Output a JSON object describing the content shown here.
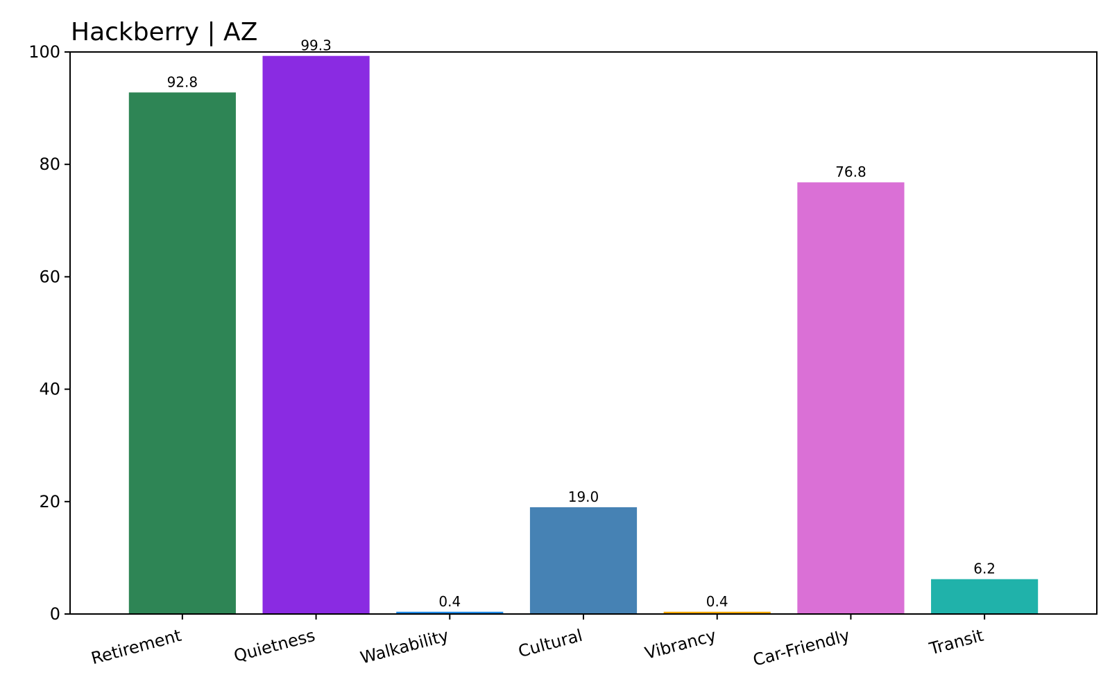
{
  "chart_data": {
    "type": "bar",
    "title": "Hackberry | AZ",
    "xlabel": "",
    "ylabel": "",
    "ylim": [
      0,
      100
    ],
    "yticks": [
      0,
      20,
      40,
      60,
      80,
      100
    ],
    "grid": false,
    "categories": [
      "Retirement",
      "Quietness",
      "Walkability",
      "Cultural",
      "Vibrancy",
      "Car-Friendly",
      "Transit"
    ],
    "values": [
      92.8,
      99.3,
      0.4,
      19.0,
      0.4,
      76.8,
      6.2
    ],
    "data_labels": [
      "92.8",
      "99.3",
      "0.4",
      "19.0",
      "0.4",
      "76.8",
      "6.2"
    ],
    "colors": [
      "#2E8555",
      "#8A2BE2",
      "#1E88E5",
      "#4682B4",
      "#F0A500",
      "#DA70D6",
      "#20B2AA"
    ]
  }
}
